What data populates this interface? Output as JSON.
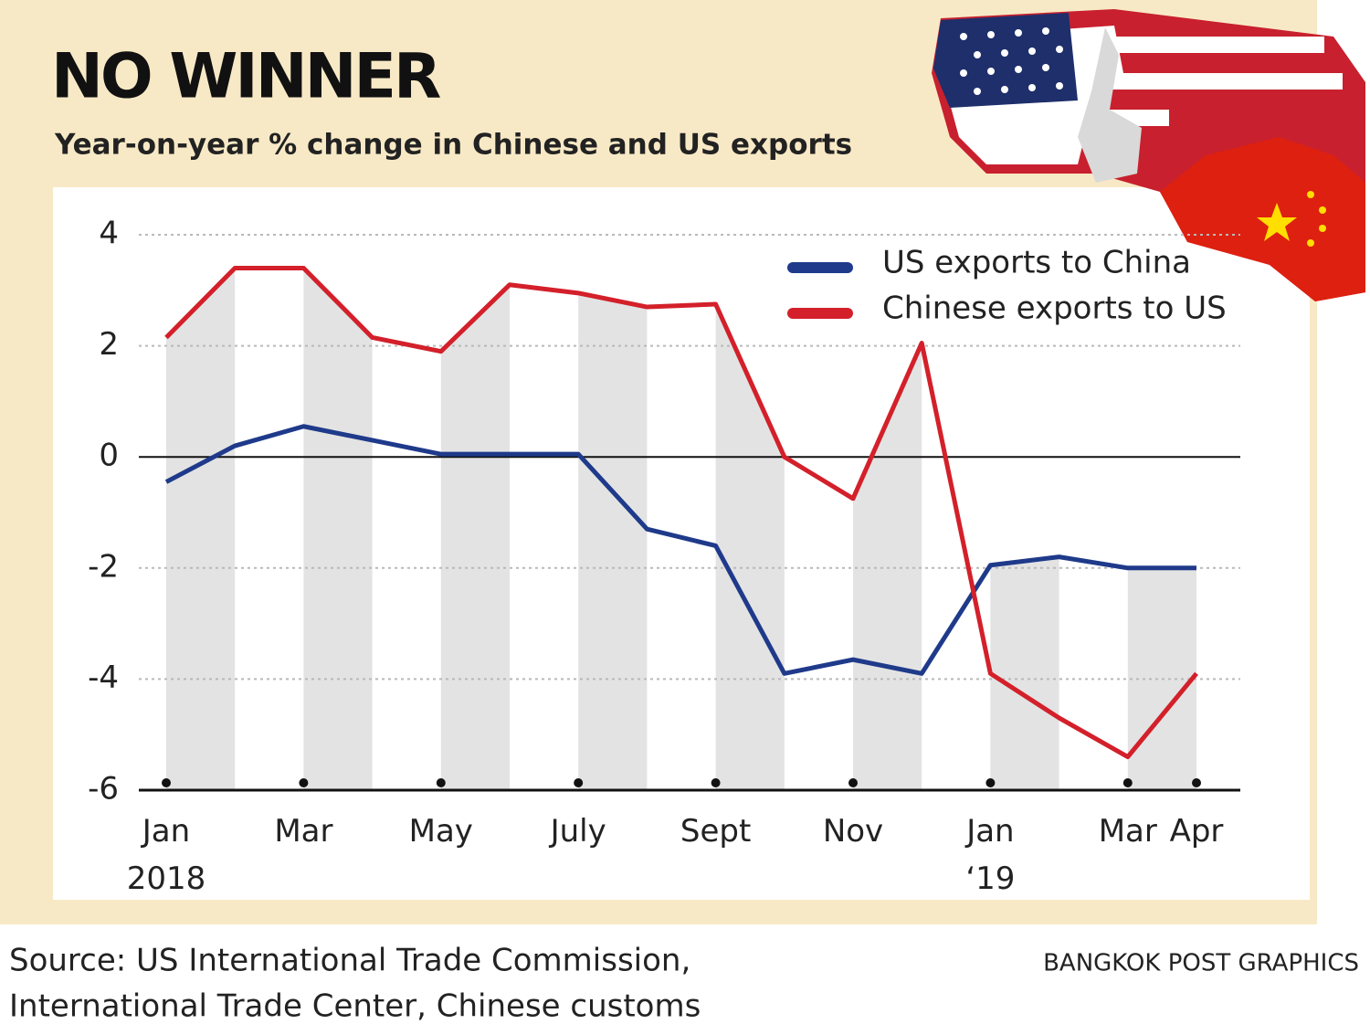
{
  "chart_data": {
    "type": "line",
    "title": "NO WINNER",
    "subtitle": "Year-on-year % change in Chinese and US exports",
    "categories": [
      "Jan 2018",
      null,
      "Mar",
      null,
      "May",
      null,
      "July",
      null,
      "Sept",
      null,
      "Nov",
      null,
      "Jan ‘19",
      null,
      "Mar",
      "Apr"
    ],
    "series": [
      {
        "name": "US exports to China",
        "color": "#1f3a8a",
        "values": [
          -0.45,
          0.2,
          0.55,
          0.3,
          0.05,
          0.05,
          0.05,
          -1.3,
          -1.6,
          -3.9,
          -3.65,
          -3.9,
          -1.95,
          -1.8,
          -2.0,
          -2.0
        ]
      },
      {
        "name": "Chinese exports to US",
        "color": "#d3202a",
        "values": [
          2.15,
          3.4,
          3.4,
          2.15,
          1.9,
          3.1,
          2.95,
          2.7,
          2.75,
          0.0,
          -0.75,
          2.05,
          -3.9,
          -4.7,
          -5.4,
          -3.9
        ]
      }
    ],
    "ylim": [
      -6,
      4
    ],
    "yticks": [
      -6,
      -4,
      -2,
      0,
      2,
      4
    ],
    "grid": true,
    "source": [
      "Source: US International Trade Commission,",
      "International Trade Center, Chinese customs"
    ],
    "credit": "BANGKOK POST GRAPHICS"
  }
}
